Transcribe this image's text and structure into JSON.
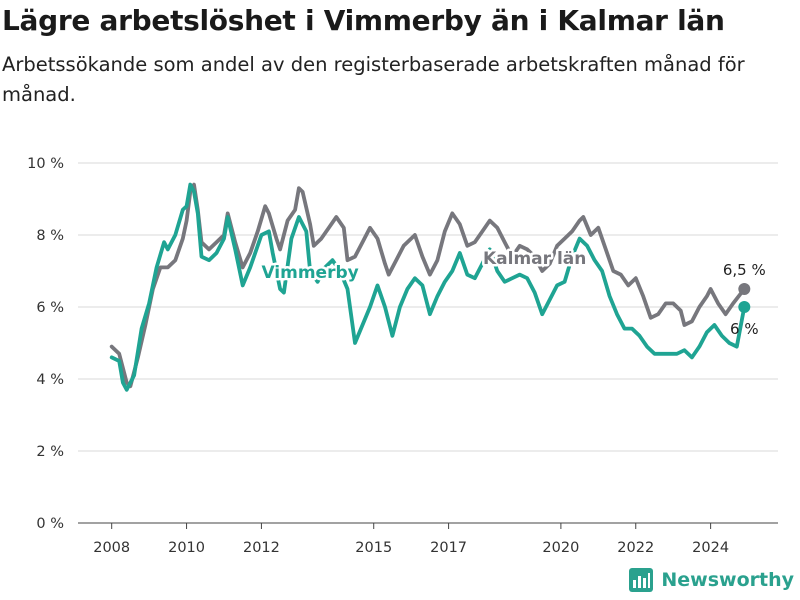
{
  "title": "Lägre arbetslöshet i Vimmerby än i Kalmar län",
  "subtitle": "Arbetssökande som andel av den registerbaserade arbetskraften månad för månad.",
  "brand": {
    "name": "Newsworthy",
    "color": "#2aa18e"
  },
  "chart_data": {
    "type": "line",
    "title": "Lägre arbetslöshet i Vimmerby än i Kalmar län",
    "subtitle": "Arbetssökande som andel av den registerbaserade arbetskraften månad för månad.",
    "x_tick_labels": [
      "2008",
      "2010",
      "2012",
      "2015",
      "2017",
      "2020",
      "2022",
      "2024"
    ],
    "x_tick_values": [
      2008,
      2010,
      2012,
      2015,
      2017,
      2020,
      2022,
      2024
    ],
    "xlim": [
      2007.1,
      2025.8
    ],
    "y_tick_labels": [
      "0 %",
      "2 %",
      "4 %",
      "6 %",
      "8 %",
      "10 %"
    ],
    "y_tick_values": [
      0,
      2,
      4,
      6,
      8,
      10
    ],
    "ylim": [
      0,
      10
    ],
    "grid": true,
    "series": [
      {
        "name": "Kalmar län",
        "label": "Kalmar län",
        "color": "#77777d",
        "end_label": "6,5 %",
        "points": [
          [
            2008.0,
            4.9
          ],
          [
            2008.2,
            4.7
          ],
          [
            2008.4,
            3.9
          ],
          [
            2008.5,
            3.8
          ],
          [
            2008.7,
            4.6
          ],
          [
            2008.9,
            5.5
          ],
          [
            2009.1,
            6.5
          ],
          [
            2009.3,
            7.1
          ],
          [
            2009.5,
            7.1
          ],
          [
            2009.7,
            7.3
          ],
          [
            2009.9,
            7.9
          ],
          [
            2010.0,
            8.4
          ],
          [
            2010.1,
            9.2
          ],
          [
            2010.2,
            9.4
          ],
          [
            2010.3,
            8.7
          ],
          [
            2010.4,
            7.8
          ],
          [
            2010.6,
            7.6
          ],
          [
            2010.8,
            7.8
          ],
          [
            2011.0,
            8.0
          ],
          [
            2011.1,
            8.6
          ],
          [
            2011.3,
            7.8
          ],
          [
            2011.5,
            7.1
          ],
          [
            2011.7,
            7.5
          ],
          [
            2011.9,
            8.1
          ],
          [
            2012.1,
            8.8
          ],
          [
            2012.2,
            8.6
          ],
          [
            2012.4,
            7.9
          ],
          [
            2012.5,
            7.6
          ],
          [
            2012.7,
            8.4
          ],
          [
            2012.9,
            8.7
          ],
          [
            2013.0,
            9.3
          ],
          [
            2013.1,
            9.2
          ],
          [
            2013.3,
            8.3
          ],
          [
            2013.4,
            7.7
          ],
          [
            2013.6,
            7.9
          ],
          [
            2013.8,
            8.2
          ],
          [
            2014.0,
            8.5
          ],
          [
            2014.2,
            8.2
          ],
          [
            2014.3,
            7.3
          ],
          [
            2014.5,
            7.4
          ],
          [
            2014.7,
            7.8
          ],
          [
            2014.9,
            8.2
          ],
          [
            2015.1,
            7.9
          ],
          [
            2015.3,
            7.2
          ],
          [
            2015.4,
            6.9
          ],
          [
            2015.6,
            7.3
          ],
          [
            2015.8,
            7.7
          ],
          [
            2016.1,
            8.0
          ],
          [
            2016.3,
            7.4
          ],
          [
            2016.5,
            6.9
          ],
          [
            2016.7,
            7.3
          ],
          [
            2016.9,
            8.1
          ],
          [
            2017.1,
            8.6
          ],
          [
            2017.3,
            8.3
          ],
          [
            2017.5,
            7.7
          ],
          [
            2017.7,
            7.8
          ],
          [
            2017.9,
            8.1
          ],
          [
            2018.1,
            8.4
          ],
          [
            2018.3,
            8.2
          ],
          [
            2018.5,
            7.8
          ],
          [
            2018.7,
            7.4
          ],
          [
            2018.9,
            7.7
          ],
          [
            2019.1,
            7.6
          ],
          [
            2019.3,
            7.4
          ],
          [
            2019.5,
            7.0
          ],
          [
            2019.7,
            7.2
          ],
          [
            2019.9,
            7.7
          ],
          [
            2020.1,
            7.9
          ],
          [
            2020.3,
            8.1
          ],
          [
            2020.5,
            8.4
          ],
          [
            2020.6,
            8.5
          ],
          [
            2020.8,
            8.0
          ],
          [
            2021.0,
            8.2
          ],
          [
            2021.2,
            7.6
          ],
          [
            2021.4,
            7.0
          ],
          [
            2021.6,
            6.9
          ],
          [
            2021.8,
            6.6
          ],
          [
            2022.0,
            6.8
          ],
          [
            2022.2,
            6.3
          ],
          [
            2022.4,
            5.7
          ],
          [
            2022.6,
            5.8
          ],
          [
            2022.8,
            6.1
          ],
          [
            2023.0,
            6.1
          ],
          [
            2023.2,
            5.9
          ],
          [
            2023.3,
            5.5
          ],
          [
            2023.5,
            5.6
          ],
          [
            2023.7,
            6.0
          ],
          [
            2023.9,
            6.3
          ],
          [
            2024.0,
            6.5
          ],
          [
            2024.2,
            6.1
          ],
          [
            2024.4,
            5.8
          ],
          [
            2024.6,
            6.1
          ],
          [
            2024.9,
            6.5
          ]
        ]
      },
      {
        "name": "Vimmerby",
        "label": "Vimmerby",
        "color": "#1fa493",
        "end_label": "6 %",
        "points": [
          [
            2008.0,
            4.6
          ],
          [
            2008.2,
            4.5
          ],
          [
            2008.3,
            3.9
          ],
          [
            2008.4,
            3.7
          ],
          [
            2008.6,
            4.1
          ],
          [
            2008.8,
            5.4
          ],
          [
            2009.0,
            6.1
          ],
          [
            2009.2,
            7.1
          ],
          [
            2009.4,
            7.8
          ],
          [
            2009.5,
            7.6
          ],
          [
            2009.7,
            8.0
          ],
          [
            2009.9,
            8.7
          ],
          [
            2010.0,
            8.8
          ],
          [
            2010.1,
            9.4
          ],
          [
            2010.2,
            9.2
          ],
          [
            2010.3,
            8.6
          ],
          [
            2010.4,
            7.4
          ],
          [
            2010.6,
            7.3
          ],
          [
            2010.8,
            7.5
          ],
          [
            2011.0,
            7.9
          ],
          [
            2011.1,
            8.5
          ],
          [
            2011.3,
            7.6
          ],
          [
            2011.5,
            6.6
          ],
          [
            2011.7,
            7.1
          ],
          [
            2011.9,
            7.7
          ],
          [
            2012.0,
            8.0
          ],
          [
            2012.2,
            8.1
          ],
          [
            2012.3,
            7.5
          ],
          [
            2012.5,
            6.5
          ],
          [
            2012.6,
            6.4
          ],
          [
            2012.8,
            7.9
          ],
          [
            2013.0,
            8.5
          ],
          [
            2013.2,
            8.1
          ],
          [
            2013.3,
            7.0
          ],
          [
            2013.5,
            6.7
          ],
          [
            2013.7,
            7.1
          ],
          [
            2013.9,
            7.3
          ],
          [
            2014.1,
            7.0
          ],
          [
            2014.3,
            6.5
          ],
          [
            2014.5,
            5.0
          ],
          [
            2014.7,
            5.5
          ],
          [
            2014.9,
            6.0
          ],
          [
            2015.1,
            6.6
          ],
          [
            2015.3,
            6.0
          ],
          [
            2015.5,
            5.2
          ],
          [
            2015.7,
            6.0
          ],
          [
            2015.9,
            6.5
          ],
          [
            2016.1,
            6.8
          ],
          [
            2016.3,
            6.6
          ],
          [
            2016.5,
            5.8
          ],
          [
            2016.7,
            6.3
          ],
          [
            2016.9,
            6.7
          ],
          [
            2017.1,
            7.0
          ],
          [
            2017.3,
            7.5
          ],
          [
            2017.5,
            6.9
          ],
          [
            2017.7,
            6.8
          ],
          [
            2017.9,
            7.2
          ],
          [
            2018.1,
            7.6
          ],
          [
            2018.3,
            7.0
          ],
          [
            2018.5,
            6.7
          ],
          [
            2018.7,
            6.8
          ],
          [
            2018.9,
            6.9
          ],
          [
            2019.1,
            6.8
          ],
          [
            2019.3,
            6.4
          ],
          [
            2019.5,
            5.8
          ],
          [
            2019.7,
            6.2
          ],
          [
            2019.9,
            6.6
          ],
          [
            2020.1,
            6.7
          ],
          [
            2020.3,
            7.4
          ],
          [
            2020.5,
            7.9
          ],
          [
            2020.7,
            7.7
          ],
          [
            2020.9,
            7.3
          ],
          [
            2021.1,
            7.0
          ],
          [
            2021.3,
            6.3
          ],
          [
            2021.5,
            5.8
          ],
          [
            2021.7,
            5.4
          ],
          [
            2021.9,
            5.4
          ],
          [
            2022.1,
            5.2
          ],
          [
            2022.3,
            4.9
          ],
          [
            2022.5,
            4.7
          ],
          [
            2022.7,
            4.7
          ],
          [
            2022.9,
            4.7
          ],
          [
            2023.1,
            4.7
          ],
          [
            2023.3,
            4.8
          ],
          [
            2023.5,
            4.6
          ],
          [
            2023.7,
            4.9
          ],
          [
            2023.9,
            5.3
          ],
          [
            2024.1,
            5.5
          ],
          [
            2024.3,
            5.2
          ],
          [
            2024.5,
            5.0
          ],
          [
            2024.7,
            4.9
          ],
          [
            2024.9,
            6.0
          ]
        ]
      }
    ]
  }
}
